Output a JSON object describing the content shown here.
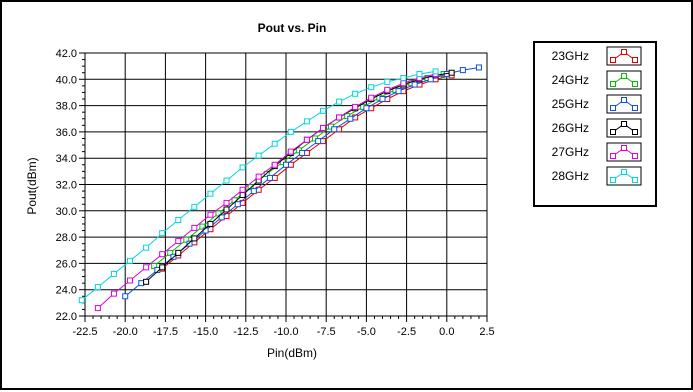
{
  "chart_data": {
    "type": "line",
    "title": "Pout vs. Pin",
    "xlabel": "Pin(dBm)",
    "ylabel": "Pout(dBm)",
    "xlim": [
      -22.5,
      2.5
    ],
    "ylim": [
      22.0,
      42.0
    ],
    "xticks": [
      "-22.5",
      "-20.0",
      "-17.5",
      "-15.0",
      "-12.5",
      "-10.0",
      "-7.5",
      "-5.0",
      "-2.5",
      "0.0",
      "2.5"
    ],
    "yticks": [
      "22.0",
      "24.0",
      "26.0",
      "28.0",
      "30.0",
      "32.0",
      "34.0",
      "36.0",
      "38.0",
      "40.0",
      "42.0"
    ],
    "grid": true,
    "legend_position": "right",
    "series": [
      {
        "name": "23GHz",
        "color": "#e00000",
        "x": [
          -17.7,
          -16.7,
          -15.7,
          -14.7,
          -13.7,
          -12.7,
          -11.7,
          -10.7,
          -9.7,
          -8.7,
          -7.7,
          -6.7,
          -5.7,
          -4.7,
          -3.7,
          -2.7,
          -1.7,
          -0.7,
          0.3
        ],
        "y": [
          25.6,
          26.6,
          27.6,
          28.6,
          29.6,
          30.6,
          31.6,
          32.5,
          33.5,
          34.4,
          35.3,
          36.2,
          37.1,
          37.8,
          38.5,
          39.1,
          39.6,
          40.0,
          40.3
        ]
      },
      {
        "name": "24GHz",
        "color": "#00c000",
        "x": [
          -18.2,
          -17.2,
          -16.2,
          -15.2,
          -14.2,
          -13.2,
          -12.2,
          -11.2,
          -10.2,
          -9.2,
          -8.2,
          -7.2,
          -6.2,
          -5.2,
          -4.2,
          -3.2,
          -2.2,
          -1.2,
          -0.2
        ],
        "y": [
          25.8,
          26.8,
          27.8,
          28.8,
          29.8,
          30.8,
          31.8,
          32.8,
          33.7,
          34.6,
          35.5,
          36.4,
          37.2,
          37.9,
          38.6,
          39.2,
          39.7,
          40.1,
          40.4
        ]
      },
      {
        "name": "25GHz",
        "color": "#1050e0",
        "x": [
          -20.0,
          -19.0,
          -18.0,
          -17.0,
          -16.0,
          -15.0,
          -14.0,
          -13.0,
          -12.0,
          -11.0,
          -10.0,
          -9.0,
          -8.0,
          -7.0,
          -6.0,
          -5.0,
          -4.0,
          -3.0,
          -2.0,
          -1.0,
          0.0,
          1.0,
          2.0
        ],
        "y": [
          23.5,
          24.5,
          25.5,
          26.5,
          27.5,
          28.5,
          29.5,
          30.5,
          31.5,
          32.5,
          33.5,
          34.4,
          35.3,
          36.2,
          37.0,
          37.8,
          38.5,
          39.1,
          39.6,
          40.0,
          40.4,
          40.7,
          40.9
        ]
      },
      {
        "name": "26GHz",
        "color": "#000000",
        "x": [
          -18.7,
          -17.7,
          -16.7,
          -15.7,
          -14.7,
          -13.7,
          -12.7,
          -11.7,
          -10.7,
          -9.7,
          -8.7,
          -7.7,
          -6.7,
          -5.7,
          -4.7,
          -3.7,
          -2.7,
          -1.7,
          -0.7,
          0.3
        ],
        "y": [
          24.6,
          25.7,
          26.8,
          27.9,
          29.0,
          30.1,
          31.2,
          32.3,
          33.4,
          34.4,
          35.4,
          36.3,
          37.1,
          37.8,
          38.5,
          39.1,
          39.6,
          40.0,
          40.3,
          40.5
        ]
      },
      {
        "name": "27GHz",
        "color": "#e000e0",
        "x": [
          -21.7,
          -20.7,
          -19.7,
          -18.7,
          -17.7,
          -16.7,
          -15.7,
          -14.7,
          -13.7,
          -12.7,
          -11.7,
          -10.7,
          -9.7,
          -8.7,
          -7.7,
          -6.7,
          -5.7,
          -4.7,
          -3.7,
          -2.7,
          -1.7,
          -0.7
        ],
        "y": [
          22.6,
          23.7,
          24.7,
          25.7,
          26.7,
          27.7,
          28.7,
          29.7,
          30.6,
          31.6,
          32.6,
          33.5,
          34.5,
          35.4,
          36.3,
          37.1,
          37.9,
          38.6,
          39.2,
          39.7,
          40.1,
          40.4
        ]
      },
      {
        "name": "28GHz",
        "color": "#00d8d8",
        "x": [
          -22.7,
          -21.7,
          -20.7,
          -19.7,
          -18.7,
          -17.7,
          -16.7,
          -15.7,
          -14.7,
          -13.7,
          -12.7,
          -11.7,
          -10.7,
          -9.7,
          -8.7,
          -7.7,
          -6.7,
          -5.7,
          -4.7,
          -3.7,
          -2.7,
          -1.7,
          -0.7
        ],
        "y": [
          23.2,
          24.2,
          25.2,
          26.2,
          27.2,
          28.3,
          29.3,
          30.3,
          31.3,
          32.3,
          33.3,
          34.2,
          35.1,
          36.0,
          36.8,
          37.6,
          38.3,
          38.9,
          39.4,
          39.8,
          40.1,
          40.4,
          40.6
        ]
      }
    ]
  }
}
